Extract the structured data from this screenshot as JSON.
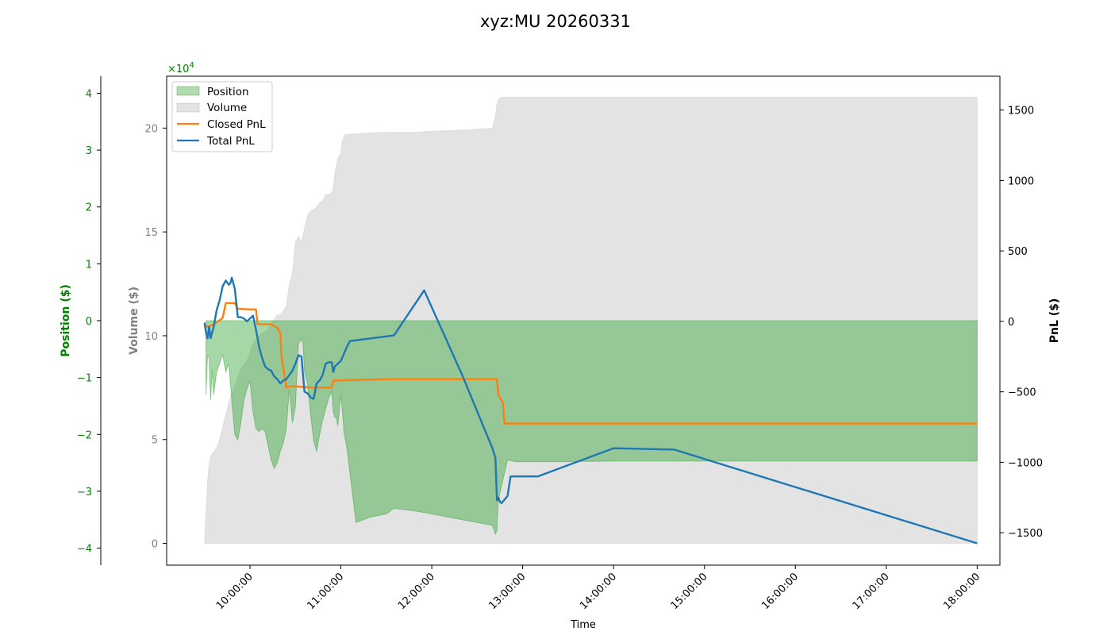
{
  "chart_data": {
    "type": "line",
    "title": "xyz:MU 20260331",
    "xlabel": "Time",
    "x_ticks": [
      "10:00:00",
      "11:00:00",
      "12:00:00",
      "13:00:00",
      "14:00:00",
      "15:00:00",
      "16:00:00",
      "17:00:00",
      "18:00:00"
    ],
    "x_range": [
      "09:05:00",
      "18:15:00"
    ],
    "axes": {
      "position": {
        "label": "Position ($)",
        "ylim": [
          -4.3,
          4.3
        ],
        "ticks": [
          4,
          3,
          2,
          1,
          0,
          -1,
          -2,
          -3,
          -4
        ],
        "tick_labels": [
          "4",
          "3",
          "2",
          "1",
          "0",
          "−1",
          "−2",
          "−3",
          "−4"
        ],
        "scale_label": "×10",
        "scale_exp": "4",
        "color": "#008000"
      },
      "volume": {
        "label": "Volume ($)",
        "ylim": [
          -1.05,
          22.5
        ],
        "ticks": [
          0,
          5,
          10,
          15,
          20
        ],
        "tick_labels": [
          "0",
          "5",
          "10",
          "15",
          "20"
        ],
        "color": "#808080"
      },
      "pnl": {
        "label": "PnL ($)",
        "ylim": [
          -1730,
          1740
        ],
        "ticks": [
          1500,
          1000,
          500,
          0,
          -500,
          -1000,
          -1500
        ],
        "tick_labels": [
          "1500",
          "1000",
          "500",
          "0",
          "−500",
          "−1000",
          "−1500"
        ],
        "color": "#000000"
      }
    },
    "legend": {
      "placement": "upper-left",
      "entries": [
        {
          "label": "Position",
          "kind": "patch",
          "color": "#2ca02c"
        },
        {
          "label": "Volume",
          "kind": "patch",
          "color": "#c8c8c8"
        },
        {
          "label": "Closed PnL",
          "kind": "line",
          "color": "#ff7f0e"
        },
        {
          "label": "Total PnL",
          "kind": "line",
          "color": "#1f77b4"
        }
      ]
    },
    "series": [
      {
        "name": "Position",
        "axis": "position",
        "style": "area",
        "color": "#2ca02c",
        "x": [
          "09:31:00",
          "09:32:00",
          "09:33:00",
          "09:34:00",
          "09:35:00",
          "09:36:00",
          "09:37:00",
          "09:38:00",
          "09:40:00",
          "09:42:00",
          "09:44:00",
          "09:46:00",
          "09:48:00",
          "09:50:00",
          "09:52:00",
          "09:54:00",
          "09:56:00",
          "09:58:00",
          "10:00:00",
          "10:02:00",
          "10:04:00",
          "10:06:00",
          "10:08:00",
          "10:10:00",
          "10:12:00",
          "10:14:00",
          "10:16:00",
          "10:18:00",
          "10:20:00",
          "10:22:00",
          "10:24:00",
          "10:26:00",
          "10:28:00",
          "10:30:00",
          "10:32:00",
          "10:34:00",
          "10:35:00",
          "10:36:00",
          "10:38:00",
          "10:40:00",
          "10:42:00",
          "10:44:00",
          "10:46:00",
          "10:48:00",
          "10:50:00",
          "10:52:00",
          "10:54:00",
          "10:55:00",
          "10:56:00",
          "10:57:00",
          "10:58:00",
          "11:00:00",
          "11:01:00",
          "11:02:00",
          "11:04:00",
          "11:10:00",
          "11:20:00",
          "11:30:00",
          "11:35:00",
          "11:50:00",
          "12:00:00",
          "12:20:00",
          "12:40:00",
          "12:42:00",
          "12:43:00",
          "12:43:30",
          "12:44:00",
          "12:50:00",
          "12:55:00",
          "13:30:00",
          "14:00:00",
          "15:00:00",
          "16:00:00",
          "17:00:00",
          "18:00:00"
        ],
        "y": [
          -1.3,
          -0.62,
          -0.65,
          -1.4,
          -0.85,
          -1.3,
          -1.1,
          -0.9,
          -0.75,
          -0.6,
          -0.9,
          -0.75,
          -1.4,
          -2.0,
          -2.1,
          -1.8,
          -1.4,
          -1.2,
          -1.05,
          -1.6,
          -1.9,
          -1.95,
          -1.9,
          -1.95,
          -2.2,
          -2.45,
          -2.6,
          -2.5,
          -2.3,
          -2.15,
          -1.9,
          -1.2,
          -1.8,
          -1.5,
          -0.4,
          -0.32,
          -0.4,
          -0.9,
          -1.1,
          -1.65,
          -2.1,
          -2.3,
          -2.0,
          -1.75,
          -1.55,
          -1.35,
          -1.25,
          -1.6,
          -1.7,
          -1.7,
          -1.85,
          -1.3,
          -1.6,
          -1.95,
          -2.25,
          -3.55,
          -3.45,
          -3.4,
          -3.3,
          -3.35,
          -3.4,
          -3.5,
          -3.6,
          -3.75,
          -3.7,
          -3.4,
          -3.15,
          -2.45,
          -2.48,
          -2.48,
          -2.47,
          -2.47,
          -2.47,
          -2.47,
          -2.47
        ]
      },
      {
        "name": "Volume",
        "axis": "volume",
        "style": "area",
        "color": "#c8c8c8",
        "x": [
          "09:30:00",
          "09:31:00",
          "09:32:00",
          "09:33:00",
          "09:34:00",
          "09:36:00",
          "09:38:00",
          "09:40:00",
          "09:42:00",
          "09:44:00",
          "09:46:00",
          "09:48:00",
          "09:50:00",
          "09:52:00",
          "09:54:00",
          "09:56:00",
          "09:58:00",
          "10:00:00",
          "10:02:00",
          "10:04:00",
          "10:06:00",
          "10:08:00",
          "10:10:00",
          "10:12:00",
          "10:14:00",
          "10:16:00",
          "10:18:00",
          "10:20:00",
          "10:22:00",
          "10:24:00",
          "10:26:00",
          "10:28:00",
          "10:30:00",
          "10:32:00",
          "10:34:00",
          "10:35:00",
          "10:36:00",
          "10:37:00",
          "10:38:00",
          "10:40:00",
          "10:42:00",
          "10:44:00",
          "10:46:00",
          "10:48:00",
          "10:50:00",
          "10:52:00",
          "10:54:00",
          "10:55:00",
          "10:56:00",
          "10:57:00",
          "10:58:00",
          "11:00:00",
          "11:01:00",
          "11:02:00",
          "11:03:00",
          "11:04:00",
          "11:30:00",
          "11:50:00",
          "12:00:00",
          "12:20:00",
          "12:40:00",
          "12:42:00",
          "12:43:00",
          "12:44:00",
          "12:46:00",
          "12:48:00",
          "13:00:00",
          "14:00:00",
          "15:00:00",
          "16:00:00",
          "17:00:00",
          "18:00:00"
        ],
        "y": [
          0,
          1.5,
          3,
          3.8,
          4.2,
          4.4,
          4.6,
          5,
          5.6,
          6.2,
          6.8,
          7.2,
          7.6,
          8,
          8.4,
          8.6,
          8.8,
          9.2,
          9.6,
          9.8,
          10,
          10.1,
          10.2,
          10.3,
          10.6,
          10.8,
          11,
          11,
          11.2,
          11.4,
          12.5,
          13,
          14.5,
          14.8,
          14.5,
          14.8,
          15.2,
          15.5,
          15.8,
          16,
          16.1,
          16.2,
          16.4,
          16.5,
          16.8,
          16.8,
          16.9,
          17.1,
          17.8,
          18.2,
          18.5,
          18.8,
          19.4,
          19.6,
          19.7,
          19.7,
          19.8,
          19.8,
          19.85,
          19.9,
          20,
          20.6,
          21.2,
          21.4,
          21.5,
          21.5,
          21.5,
          21.5,
          21.5,
          21.5,
          21.5,
          21.5
        ]
      },
      {
        "name": "Closed PnL",
        "axis": "pnl",
        "style": "line",
        "color": "#ff7f0e",
        "x": [
          "09:30:00",
          "09:36:00",
          "09:42:00",
          "09:44:00",
          "09:50:00",
          "09:52:00",
          "10:00:00",
          "10:04:00",
          "10:05:00",
          "10:14:00",
          "10:18:00",
          "10:20:00",
          "10:21:00",
          "10:24:00",
          "10:28:00",
          "10:40:00",
          "10:54:00",
          "10:55:00",
          "11:30:00",
          "12:00:00",
          "12:43:00",
          "12:44:00",
          "12:47:00",
          "12:48:00",
          "13:00:00",
          "18:00:00"
        ],
        "y": [
          -40,
          -25,
          25,
          130,
          130,
          90,
          85,
          85,
          -20,
          -20,
          -45,
          -80,
          -260,
          -470,
          -460,
          -470,
          -470,
          -420,
          -410,
          -410,
          -410,
          -520,
          -580,
          -725,
          -725,
          -725
        ]
      },
      {
        "name": "Total PnL",
        "axis": "pnl",
        "style": "line",
        "color": "#1f77b4",
        "x": [
          "09:30:00",
          "09:31:00",
          "09:32:00",
          "09:33:00",
          "09:34:00",
          "09:35:00",
          "09:36:00",
          "09:38:00",
          "09:40:00",
          "09:42:00",
          "09:44:00",
          "09:46:00",
          "09:47:00",
          "09:48:00",
          "09:50:00",
          "09:52:00",
          "09:54:00",
          "09:56:00",
          "09:58:00",
          "10:00:00",
          "10:02:00",
          "10:04:00",
          "10:06:00",
          "10:08:00",
          "10:10:00",
          "10:12:00",
          "10:14:00",
          "10:16:00",
          "10:18:00",
          "10:20:00",
          "10:22:00",
          "10:24:00",
          "10:26:00",
          "10:28:00",
          "10:30:00",
          "10:32:00",
          "10:34:00",
          "10:36:00",
          "10:38:00",
          "10:40:00",
          "10:42:00",
          "10:44:00",
          "10:46:00",
          "10:48:00",
          "10:50:00",
          "10:52:00",
          "10:54:00",
          "10:55:00",
          "10:56:00",
          "11:00:00",
          "11:02:00",
          "11:04:00",
          "11:06:00",
          "11:35:00",
          "11:55:00",
          "12:20:00",
          "12:40:00",
          "12:42:00",
          "12:43:00",
          "12:44:00",
          "12:45:00",
          "12:46:00",
          "12:50:00",
          "12:52:00",
          "13:10:00",
          "14:00:00",
          "14:40:00",
          "18:00:00"
        ],
        "y": [
          -10,
          -80,
          -120,
          -40,
          -120,
          -80,
          -40,
          80,
          150,
          250,
          290,
          260,
          270,
          310,
          230,
          30,
          30,
          20,
          0,
          20,
          40,
          -60,
          -180,
          -260,
          -320,
          -340,
          -350,
          -390,
          -410,
          -440,
          -420,
          -410,
          -380,
          -350,
          -300,
          -240,
          -250,
          -500,
          -510,
          -540,
          -550,
          -440,
          -420,
          -380,
          -300,
          -290,
          -290,
          -360,
          -320,
          -280,
          -230,
          -180,
          -140,
          -100,
          220,
          -380,
          -900,
          -970,
          -1270,
          -1250,
          -1280,
          -1290,
          -1240,
          -1100,
          -1100,
          -900,
          -910,
          -1575
        ]
      }
    ]
  }
}
